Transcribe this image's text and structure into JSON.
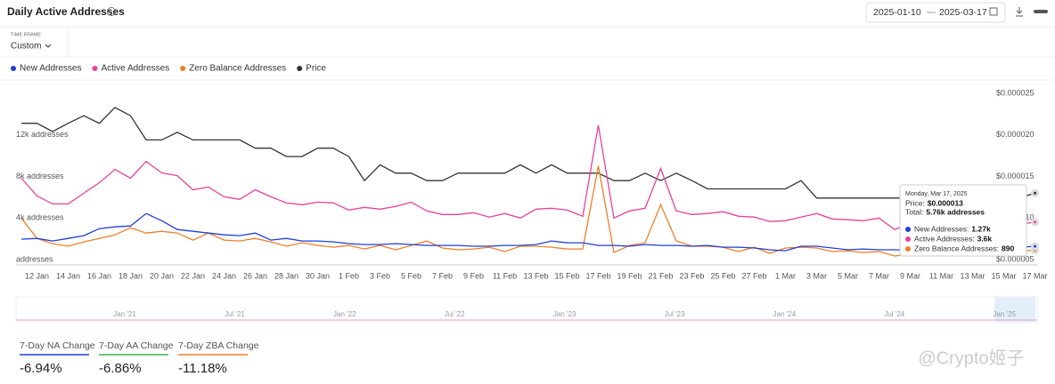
{
  "header": {
    "title": "Daily Active Addresses",
    "date_from": "2025-01-10",
    "date_to": "2025-03-17",
    "time_frame_label": "TIME FRAME",
    "time_frame": "Custom"
  },
  "chart_data": {
    "type": "line",
    "categories": [
      null,
      "12 Jan",
      null,
      "14 Jan",
      null,
      "16 Jan",
      null,
      "18 Jan",
      null,
      "20 Jan",
      null,
      "22 Jan",
      null,
      "24 Jan",
      null,
      "26 Jan",
      null,
      "28 Jan",
      null,
      "30 Jan",
      null,
      "1 Feb",
      null,
      "3 Feb",
      null,
      "5 Feb",
      null,
      "7 Feb",
      null,
      "9 Feb",
      null,
      "11 Feb",
      null,
      "13 Feb",
      null,
      "15 Feb",
      null,
      "17 Feb",
      null,
      "19 Feb",
      null,
      "21 Feb",
      null,
      "23 Feb",
      null,
      "25 Feb",
      null,
      "27 Feb",
      null,
      "1 Mar",
      null,
      "3 Mar",
      null,
      "5 Mar",
      null,
      "7 Mar",
      null,
      "9 Mar",
      null,
      "11 Mar",
      null,
      "13 Mar",
      null,
      "15 Mar",
      null,
      "17 Mar"
    ],
    "series": [
      {
        "name": "New Addresses",
        "color": "#1f3fd6",
        "values": [
          1960,
          2040,
          1790,
          2040,
          2300,
          2980,
          3150,
          3230,
          4430,
          3740,
          2890,
          2720,
          2550,
          2380,
          2300,
          2550,
          1870,
          2040,
          1790,
          1790,
          1700,
          1530,
          1450,
          1450,
          1530,
          1450,
          1360,
          1360,
          1360,
          1280,
          1280,
          1360,
          1360,
          1450,
          1790,
          1620,
          1620,
          1360,
          1360,
          1280,
          1450,
          1360,
          1360,
          1280,
          1360,
          1190,
          1190,
          1110,
          940,
          850,
          1280,
          1280,
          1110,
          940,
          1020,
          940,
          940,
          900,
          900,
          950,
          1000,
          1050,
          1100,
          1150,
          1200,
          1270
        ]
      },
      {
        "name": "Active Addresses",
        "color": "#e8409e",
        "values": [
          7830,
          6130,
          5360,
          5360,
          6380,
          7400,
          8680,
          7830,
          9450,
          8340,
          8080,
          6720,
          6980,
          6040,
          5790,
          6720,
          6040,
          5450,
          5280,
          5530,
          5450,
          4770,
          5020,
          4850,
          5110,
          5530,
          4680,
          4340,
          4340,
          4510,
          4090,
          4430,
          4000,
          4850,
          4940,
          4770,
          4170,
          12940,
          4000,
          4680,
          4940,
          8770,
          4680,
          4340,
          4430,
          4600,
          4170,
          4090,
          3660,
          3740,
          4090,
          4430,
          3910,
          3830,
          3740,
          4000,
          2890,
          3500,
          3550,
          3500,
          3600,
          3550,
          3500,
          3450,
          3400,
          3600
        ]
      },
      {
        "name": "Zero Balance Addresses",
        "color": "#f07f2a",
        "values": [
          4000,
          2040,
          1530,
          1280,
          1700,
          2040,
          2380,
          3060,
          2550,
          2720,
          2550,
          1870,
          2550,
          1870,
          1790,
          2040,
          1700,
          1280,
          1620,
          1360,
          1190,
          1360,
          1020,
          1360,
          940,
          1360,
          1790,
          1110,
          940,
          1020,
          1190,
          770,
          1280,
          1280,
          1190,
          1020,
          1020,
          9020,
          680,
          1360,
          1620,
          5280,
          1790,
          1280,
          1280,
          1190,
          770,
          1190,
          600,
          1110,
          1190,
          1110,
          770,
          850,
          680,
          770,
          340,
          500,
          550,
          600,
          650,
          700,
          750,
          800,
          850,
          890
        ]
      },
      {
        "name": "Price",
        "color": "#333333",
        "axis": "y2",
        "values": [
          2.14e-05,
          2.14e-05,
          2.04e-05,
          2.14e-05,
          2.23e-05,
          2.14e-05,
          2.33e-05,
          2.23e-05,
          1.94e-05,
          1.94e-05,
          2.03e-05,
          1.94e-05,
          1.94e-05,
          1.94e-05,
          1.94e-05,
          1.84e-05,
          1.84e-05,
          1.74e-05,
          1.74e-05,
          1.84e-05,
          1.84e-05,
          1.74e-05,
          1.45e-05,
          1.64e-05,
          1.54e-05,
          1.54e-05,
          1.45e-05,
          1.45e-05,
          1.54e-05,
          1.54e-05,
          1.54e-05,
          1.54e-05,
          1.64e-05,
          1.54e-05,
          1.64e-05,
          1.54e-05,
          1.54e-05,
          1.54e-05,
          1.45e-05,
          1.45e-05,
          1.54e-05,
          1.45e-05,
          1.54e-05,
          1.45e-05,
          1.35e-05,
          1.35e-05,
          1.35e-05,
          1.35e-05,
          1.35e-05,
          1.35e-05,
          1.45e-05,
          1.24e-05,
          1.24e-05,
          1.24e-05,
          1.24e-05,
          1.24e-05,
          1.24e-05,
          1.24e-05,
          1.24e-05,
          1.24e-05,
          1.24e-05,
          1.24e-05,
          1.24e-05,
          1.24e-05,
          1.24e-05,
          1.3e-05
        ]
      }
    ],
    "ylim": [
      0,
      16000
    ],
    "yticks": [
      {
        "value": 0,
        "label": "addresses"
      },
      {
        "value": 4000,
        "label": "4k addresses"
      },
      {
        "value": 8000,
        "label": "8k addresses"
      },
      {
        "value": 12000,
        "label": "12k addresses"
      }
    ],
    "y2lim": [
      5e-06,
      2.5e-05
    ],
    "y2ticks": [
      {
        "value": 5e-06,
        "label": "$0.000005"
      },
      {
        "value": 1e-05,
        "label": "$0.000010"
      },
      {
        "value": 1.5e-05,
        "label": "$0.000015"
      },
      {
        "value": 2e-05,
        "label": "$0.000020"
      },
      {
        "value": 2.5e-05,
        "label": "$0.000025"
      }
    ],
    "grid": false
  },
  "tooltip": {
    "date": "Monday, Mar 17, 2025",
    "price_label": "Price:",
    "price": "$0.000013",
    "total_label": "Total:",
    "total": "5.76k addresses",
    "rows": [
      {
        "label": "New Addresses:",
        "value": "1.27k"
      },
      {
        "label": "Active Addresses:",
        "value": "3.6k"
      },
      {
        "label": "Zero Balance Addresses:",
        "value": "890"
      }
    ]
  },
  "navigator": {
    "labels": [
      "Jan '21",
      "Jul '21",
      "Jan '22",
      "Jul '22",
      "Jan '23",
      "Jul '23",
      "Jan '24",
      "Jul '24",
      "Jan '25"
    ]
  },
  "stats": [
    {
      "label": "7-Day NA Change",
      "value": "-6.94%",
      "color": "#1f3fd6"
    },
    {
      "label": "7-Day AA Change",
      "value": "-6.86%",
      "color": "#3bb34a"
    },
    {
      "label": "7-Day ZBA Change",
      "value": "-11.18%",
      "color": "#f07f2a"
    }
  ],
  "watermark": "@Crypto姬子"
}
